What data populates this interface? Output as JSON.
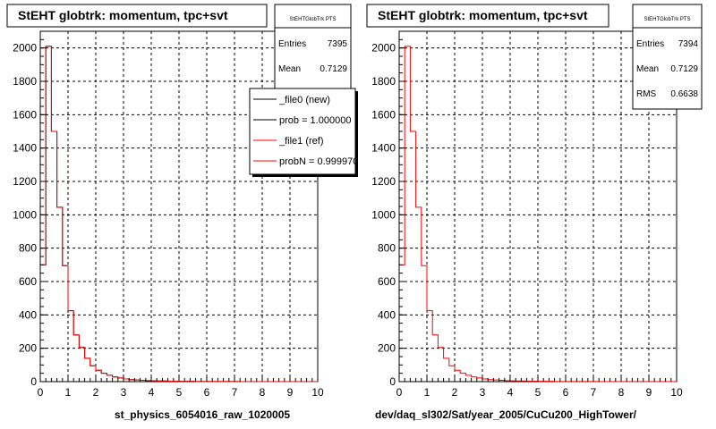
{
  "chart_data": [
    {
      "type": "bar",
      "title": "StEHT globtrk: momentum, tpc+svt",
      "xlabel": "st_physics_6054016_raw_1020005",
      "ylabel": "",
      "xlim": [
        0,
        10
      ],
      "ylim": [
        0,
        2100
      ],
      "grid": true,
      "x_ticks": [
        "0",
        "1",
        "2",
        "3",
        "4",
        "5",
        "6",
        "7",
        "8",
        "9",
        "10"
      ],
      "y_ticks": [
        "0",
        "200",
        "400",
        "600",
        "800",
        "1000",
        "1200",
        "1400",
        "1600",
        "1800",
        "2000"
      ],
      "bin_width": 0.2,
      "series": [
        {
          "name": "_file0 (new)",
          "color": "#000000",
          "values": [
            700,
            2010,
            1500,
            1045,
            695,
            425,
            280,
            205,
            140,
            95,
            68,
            50,
            38,
            28,
            22,
            16,
            12,
            10,
            8,
            6,
            5,
            4,
            4,
            3,
            3,
            2,
            2,
            2,
            1,
            1,
            1,
            1,
            1,
            1,
            1,
            1,
            0,
            0,
            0,
            0,
            0,
            0,
            0,
            0,
            0,
            0,
            0,
            0,
            0,
            0
          ]
        },
        {
          "name": "_file1 (ref)",
          "color": "#ff0000",
          "values": [
            700,
            2010,
            1500,
            1045,
            695,
            425,
            280,
            205,
            140,
            95,
            68,
            50,
            38,
            28,
            22,
            16,
            12,
            10,
            8,
            6,
            5,
            4,
            4,
            3,
            3,
            2,
            2,
            2,
            1,
            1,
            1,
            1,
            1,
            1,
            1,
            1,
            0,
            0,
            0,
            0,
            0,
            0,
            0,
            0,
            0,
            0,
            0,
            0,
            0,
            0
          ]
        }
      ],
      "stats": {
        "header": "StEHTGlobTrk PTS",
        "entries_label": "Entries",
        "entries": "7395",
        "mean_label": "Mean",
        "mean": "0.7129"
      },
      "legend": {
        "placement": "top-right",
        "entries": [
          "_file0 (new)",
          "prob = 1.000000",
          "_file1 (ref)",
          "probN = 0.999970"
        ]
      }
    },
    {
      "type": "bar",
      "title": "StEHT globtrk: momentum, tpc+svt",
      "xlabel": "dev/daq_sl302/Sat/year_2005/CuCu200_HighTower/",
      "ylabel": "",
      "xlim": [
        0,
        10
      ],
      "ylim": [
        0,
        2100
      ],
      "grid": true,
      "x_ticks": [
        "0",
        "1",
        "2",
        "3",
        "4",
        "5",
        "6",
        "7",
        "8",
        "9",
        "10"
      ],
      "y_ticks": [
        "0",
        "200",
        "400",
        "600",
        "800",
        "1000",
        "1200",
        "1400",
        "1600",
        "1800",
        "2000"
      ],
      "bin_width": 0.2,
      "series": [
        {
          "name": "",
          "color": "#ff0000",
          "values": [
            700,
            2010,
            1500,
            1045,
            695,
            425,
            280,
            205,
            140,
            95,
            68,
            50,
            38,
            28,
            22,
            16,
            12,
            10,
            8,
            6,
            5,
            4,
            4,
            3,
            3,
            2,
            2,
            2,
            1,
            1,
            1,
            1,
            1,
            1,
            1,
            1,
            0,
            0,
            0,
            0,
            0,
            0,
            0,
            0,
            0,
            0,
            0,
            0,
            0,
            0
          ]
        }
      ],
      "stats": {
        "header": "StEHTGlobTrk PTS",
        "entries_label": "Entries",
        "entries": "7394",
        "mean_label": "Mean",
        "mean": "0.7129",
        "rms_label": "RMS",
        "rms": "0.6638"
      }
    }
  ]
}
